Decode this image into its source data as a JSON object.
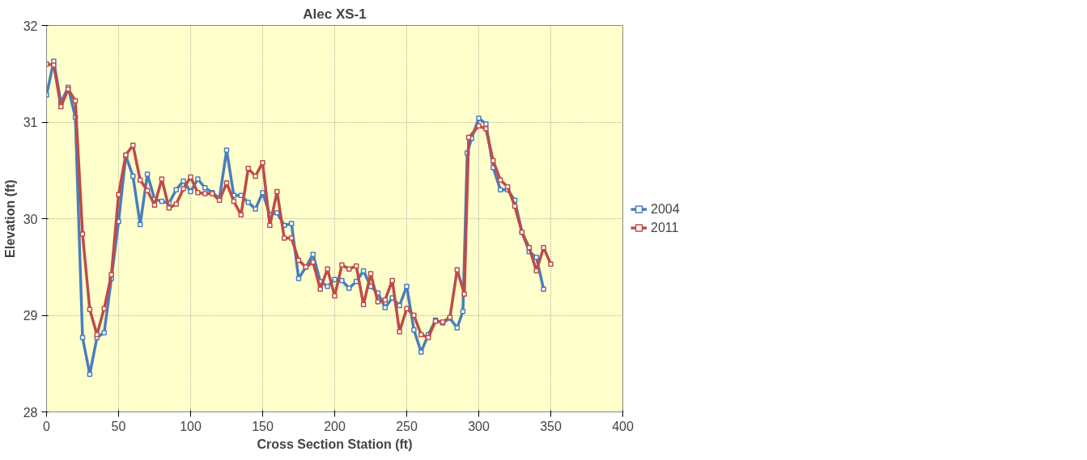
{
  "chart_data": {
    "type": "line",
    "title": "Alec XS-1",
    "xlabel": "Cross Section Station (ft)",
    "ylabel": "Elevation (ft)",
    "xlim": [
      0,
      400
    ],
    "xticks": [
      0,
      50,
      100,
      150,
      200,
      250,
      300,
      350,
      400
    ],
    "ylim": [
      28,
      32
    ],
    "yticks": [
      28,
      29,
      30,
      31,
      32
    ],
    "grid": true,
    "legend": "right",
    "marker": "square",
    "line_style": "solid",
    "series": [
      {
        "name": "2004",
        "color": "#4a7ebb",
        "x": [
          0,
          5,
          10,
          15,
          20,
          25,
          30,
          35,
          40,
          45,
          50,
          55,
          60,
          65,
          70,
          75,
          80,
          85,
          90,
          95,
          100,
          105,
          110,
          115,
          120,
          125,
          130,
          135,
          140,
          145,
          150,
          155,
          160,
          165,
          170,
          175,
          180,
          185,
          190,
          195,
          200,
          205,
          210,
          215,
          220,
          225,
          230,
          235,
          240,
          245,
          250,
          255,
          260,
          265,
          270,
          275,
          280,
          285,
          289,
          292,
          295,
          300,
          305,
          310,
          315,
          320,
          325,
          330,
          335,
          340,
          345
        ],
        "values": [
          31.28,
          31.63,
          31.2,
          31.36,
          31.05,
          28.77,
          28.39,
          28.77,
          28.82,
          29.38,
          29.97,
          30.65,
          30.44,
          29.94,
          30.46,
          30.2,
          30.18,
          30.16,
          30.3,
          30.39,
          30.28,
          30.41,
          30.32,
          30.27,
          30.21,
          30.71,
          30.24,
          30.24,
          30.17,
          30.1,
          30.27,
          30.04,
          30.06,
          29.93,
          29.95,
          29.38,
          29.5,
          29.63,
          29.35,
          29.3,
          29.37,
          29.36,
          29.28,
          29.35,
          29.46,
          29.3,
          29.23,
          29.08,
          29.18,
          29.1,
          29.3,
          28.85,
          28.62,
          28.8,
          28.95,
          28.92,
          28.97,
          28.87,
          29.04,
          30.68,
          30.83,
          31.04,
          30.98,
          30.53,
          30.3,
          30.3,
          30.19,
          29.86,
          29.66,
          29.6,
          29.27
        ]
      },
      {
        "name": "2011",
        "color": "#be4b48",
        "x": [
          0,
          5,
          10,
          15,
          20,
          25,
          30,
          35,
          40,
          45,
          50,
          55,
          60,
          65,
          70,
          75,
          80,
          85,
          90,
          95,
          100,
          105,
          110,
          115,
          120,
          125,
          130,
          135,
          140,
          145,
          150,
          155,
          160,
          165,
          170,
          175,
          180,
          185,
          190,
          195,
          200,
          205,
          210,
          215,
          220,
          225,
          230,
          235,
          240,
          245,
          250,
          255,
          260,
          265,
          270,
          275,
          280,
          285,
          290,
          293,
          300,
          305,
          310,
          315,
          320,
          325,
          330,
          335,
          340,
          345,
          350
        ],
        "values": [
          31.6,
          31.59,
          31.16,
          31.34,
          31.22,
          29.84,
          29.06,
          28.8,
          29.07,
          29.42,
          30.25,
          30.66,
          30.76,
          30.4,
          30.29,
          30.14,
          30.41,
          30.11,
          30.15,
          30.31,
          30.43,
          30.27,
          30.26,
          30.26,
          30.19,
          30.37,
          30.18,
          30.04,
          30.52,
          30.44,
          30.58,
          29.93,
          30.28,
          29.8,
          29.8,
          29.57,
          29.5,
          29.55,
          29.27,
          29.48,
          29.2,
          29.52,
          29.48,
          29.51,
          29.11,
          29.43,
          29.14,
          29.16,
          29.36,
          28.83,
          29.07,
          29.0,
          28.8,
          28.77,
          28.94,
          28.93,
          28.98,
          29.47,
          29.22,
          30.84,
          30.96,
          30.93,
          30.6,
          30.4,
          30.33,
          30.13,
          29.86,
          29.7,
          29.46,
          29.7,
          29.53
        ]
      }
    ]
  }
}
